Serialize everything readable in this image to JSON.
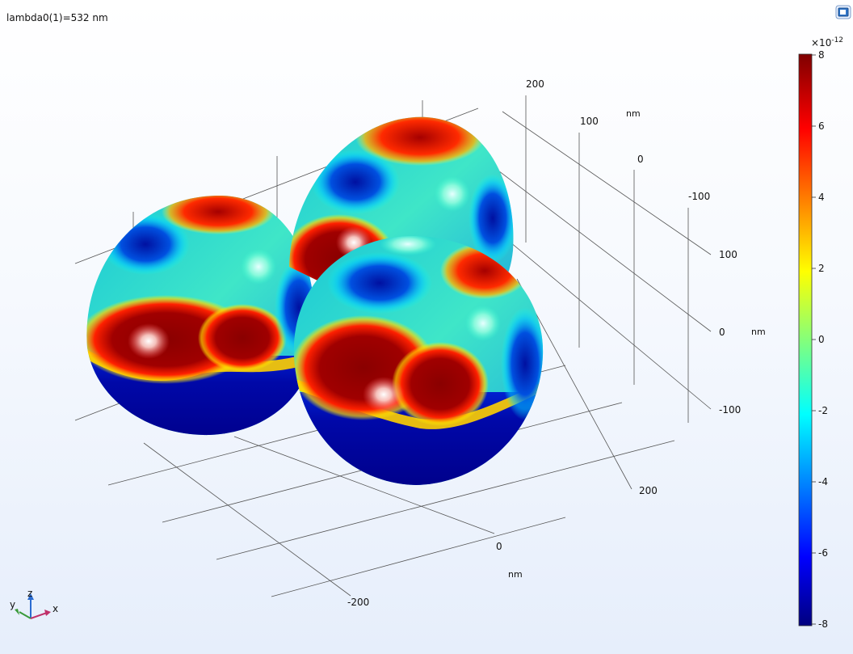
{
  "header": {
    "title": "lambda0(1)=532 nm"
  },
  "toolbar": {
    "corner_icon": "image-snapshot-icon"
  },
  "axes": {
    "vertical_ticks": [
      "200",
      "100",
      "0",
      "-100"
    ],
    "vertical_unit": "nm",
    "right_ticks": [
      "100",
      "0",
      "-100"
    ],
    "right_unit": "nm",
    "bottom_ticks": [
      "200",
      "0",
      "-200"
    ],
    "bottom_unit": "nm"
  },
  "colorbar": {
    "multiplier_base": "×10",
    "multiplier_exp": "-12",
    "ticks": [
      "8",
      "6",
      "4",
      "2",
      "0",
      "-2",
      "-4",
      "-6",
      "-8"
    ],
    "min": -8,
    "max": 8,
    "colormap": [
      "#00007f",
      "#0000ff",
      "#00ffff",
      "#ffff00",
      "#ff0000",
      "#7f0000"
    ]
  },
  "triad": {
    "x": "x",
    "y": "y",
    "z": "z"
  }
}
